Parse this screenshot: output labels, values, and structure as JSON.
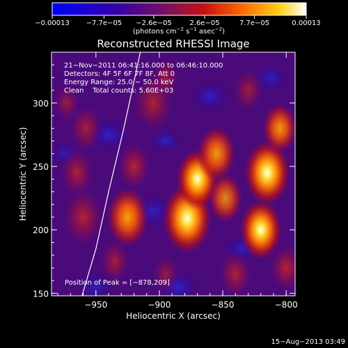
{
  "chart_data": {
    "type": "heatmap",
    "title": "Reconstructed RHESSI Image",
    "xlabel": "Heliocentric X (arcsec)",
    "ylabel": "Heliocentric Y (arcsec)",
    "xlim": [
      -985,
      -793
    ],
    "ylim": [
      148,
      340
    ],
    "x_ticks": [
      -950,
      -900,
      -850,
      -800
    ],
    "x_tick_labels": [
      "−950",
      "−900",
      "−850",
      "−800"
    ],
    "y_ticks": [
      150,
      200,
      250,
      300
    ],
    "y_tick_labels": [
      "150",
      "200",
      "250",
      "300"
    ],
    "colorbar": {
      "min": -0.00013,
      "max": 0.00013,
      "tick_values": [
        -0.00013,
        -7.7e-05,
        -2.6e-05,
        2.6e-05,
        7.7e-05,
        0.00013
      ],
      "tick_labels": [
        "−0.00013",
        "−7.7e−05",
        "−2.6e−05",
        "2.6e−05",
        "7.7e−05",
        "0.00013"
      ],
      "unit_prefix": "(photons cm",
      "unit_sup1": "−2",
      "unit_mid": " s",
      "unit_sup2": "−1",
      "unit_mid2": " asec",
      "unit_sup3": "−2",
      "unit_suffix": ")"
    },
    "annotations": [
      "21−Nov−2011 06:41:16.000 to 06:46:10.000",
      "Detectors: 4F 5F 6F 7F 8F, Att 0",
      "Energy Range: 25.0 − 50.0 keV",
      "Clean    Total counts: 5.60E+03"
    ],
    "peak_label": "Position of Peak = [−878,209]",
    "peak": [
      -878,
      209
    ],
    "limb": [
      [
        -961,
        148
      ],
      [
        -950,
        185
      ],
      [
        -940,
        230
      ],
      [
        -928,
        280
      ],
      [
        -915,
        340
      ]
    ],
    "sources": [
      [
        -960,
        210,
        12,
        0.55
      ],
      [
        -965,
        245,
        10,
        0.5
      ],
      [
        -958,
        280,
        10,
        0.45
      ],
      [
        -973,
        300,
        8,
        0.35
      ],
      [
        -925,
        210,
        12,
        0.75
      ],
      [
        -935,
        175,
        9,
        0.45
      ],
      [
        -920,
        250,
        10,
        0.55
      ],
      [
        -905,
        300,
        12,
        0.5
      ],
      [
        -895,
        320,
        8,
        0.4
      ],
      [
        -878,
        209,
        14,
        1.0
      ],
      [
        -870,
        240,
        12,
        0.85
      ],
      [
        -855,
        260,
        11,
        0.7
      ],
      [
        -848,
        225,
        10,
        0.6
      ],
      [
        -840,
        165,
        10,
        0.5
      ],
      [
        -820,
        200,
        12,
        0.9
      ],
      [
        -815,
        245,
        13,
        0.9
      ],
      [
        -805,
        280,
        10,
        0.7
      ],
      [
        -800,
        170,
        10,
        0.55
      ],
      [
        -830,
        310,
        9,
        0.4
      ],
      [
        -895,
        165,
        8,
        0.35
      ]
    ],
    "minima": [
      [
        -940,
        275,
        10,
        0.55
      ],
      [
        -905,
        215,
        10,
        0.45
      ],
      [
        -885,
        155,
        10,
        0.55
      ],
      [
        -860,
        305,
        10,
        0.5
      ],
      [
        -835,
        185,
        9,
        0.5
      ],
      [
        -950,
        155,
        9,
        0.4
      ],
      [
        -895,
        270,
        8,
        0.5
      ],
      [
        -812,
        320,
        9,
        0.45
      ],
      [
        -975,
        260,
        8,
        0.35
      ]
    ]
  },
  "footer": {
    "timestamp": "15−Aug−2013 03:49"
  }
}
